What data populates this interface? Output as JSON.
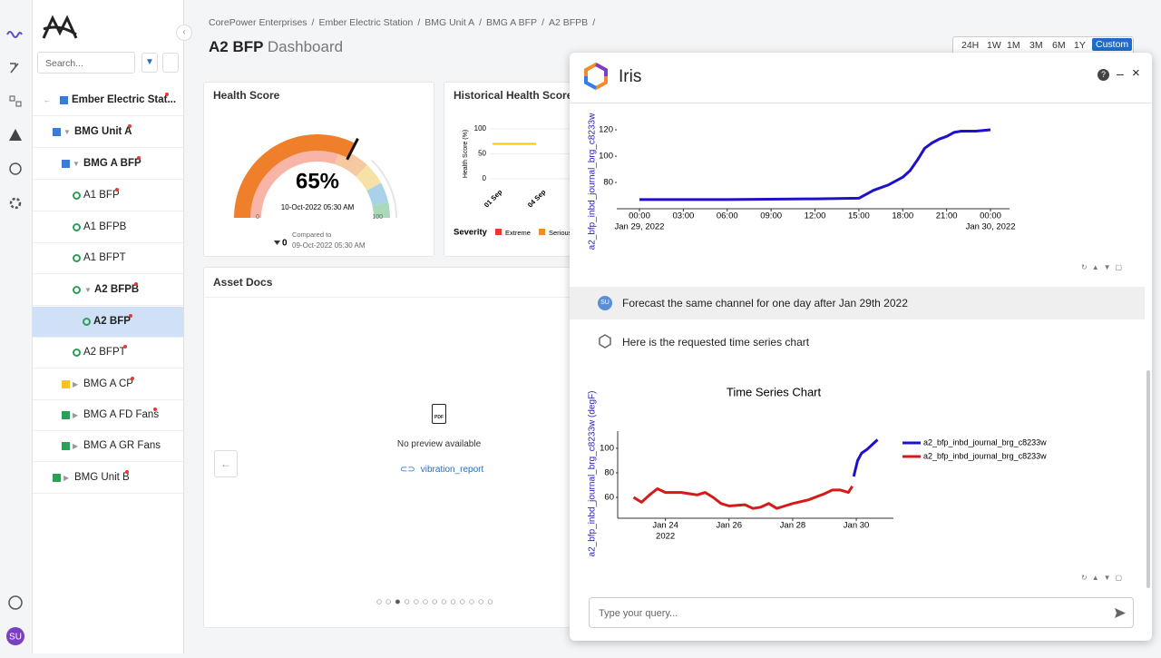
{
  "sidebar": {
    "search_placeholder": "Search...",
    "tree": [
      "Ember Electric Stat...",
      "BMG Unit A",
      "BMG A BFP",
      "A1 BFP",
      "A1 BFPB",
      "A1 BFPT",
      "A2 BFPB",
      "A2 BFP",
      "A2 BFPT",
      "BMG A CP",
      "BMG A FD Fans",
      "BMG A GR Fans",
      "BMG Unit B"
    ],
    "avatar": "SU"
  },
  "breadcrumb": {
    "items": [
      "CorePower Enterprises",
      "Ember Electric Station",
      "BMG Unit A",
      "BMG A BFP",
      "A2 BFPB"
    ],
    "separator": "/"
  },
  "header": {
    "title": "A2 BFP",
    "title_suffix": "Dashboard",
    "time_ranges": [
      "24H",
      "1W",
      "1M",
      "3M",
      "6M",
      "1Y",
      "Custom"
    ]
  },
  "health_score": {
    "title": "Health Score",
    "value": 65,
    "value_label": "65%",
    "min": 0,
    "max": 100,
    "timestamp": "10-Oct-2022 05:30 AM",
    "change": 0,
    "compared_to": "Compared to",
    "compared_timestamp": "09-Oct-2022 05:30 AM"
  },
  "historical": {
    "title": "Historical Health Score Trend",
    "chart_data": {
      "type": "line",
      "y_label": "Health Score (%)",
      "categories": [
        "01 Sep",
        "04 Sep"
      ],
      "values": [
        70,
        70
      ],
      "color": "#f5c518",
      "ylim": [
        0,
        100
      ],
      "yticks": [
        0,
        50,
        100
      ]
    },
    "severity_label": "Severity",
    "severity": [
      {
        "name": "Extreme",
        "color": "#e53935"
      },
      {
        "name": "Serious",
        "color": "#f08c2b"
      }
    ]
  },
  "asset_docs": {
    "title": "Asset Docs",
    "pdf_icon": "PDF",
    "empty": "No preview available",
    "file": "vibration_report"
  },
  "iris": {
    "title": "Iris",
    "chart1": {
      "type": "line",
      "y_label": "a2_bfp_inbd_journal_brg_c8233w",
      "series": [
        {
          "color": "#1f10cc",
          "x": [
            "2022-01-29T00:00",
            "2022-01-29T06:00",
            "2022-01-29T12:00",
            "2022-01-29T15:00",
            "2022-01-29T15:30",
            "2022-01-29T16:00",
            "2022-01-29T17:00",
            "2022-01-29T18:00",
            "2022-01-29T18:30",
            "2022-01-29T19:00",
            "2022-01-29T19:30",
            "2022-01-29T20:00",
            "2022-01-29T20:30",
            "2022-01-29T21:00",
            "2022-01-29T21:30",
            "2022-01-29T22:00",
            "2022-01-29T23:00",
            "2022-01-30T00:00"
          ],
          "values": [
            67,
            67,
            67.5,
            68,
            71,
            74,
            78,
            84,
            89,
            97,
            106,
            110,
            113,
            115,
            118,
            119,
            119,
            120
          ]
        }
      ],
      "xlim": [
        "2022-01-28T22:27",
        "2022-01-30T01:18"
      ],
      "ylim": [
        60,
        129
      ],
      "xticks": [
        {
          "value": "2022-01-29T00:00",
          "label": "00:00"
        },
        {
          "value": "2022-01-29T03:00",
          "label": "03:00"
        },
        {
          "value": "2022-01-29T06:00",
          "label": "06:00"
        },
        {
          "value": "2022-01-29T09:00",
          "label": "09:00"
        },
        {
          "value": "2022-01-29T12:00",
          "label": "12:00"
        },
        {
          "value": "2022-01-29T15:00",
          "label": "15:00"
        },
        {
          "value": "2022-01-29T18:00",
          "label": "18:00"
        },
        {
          "value": "2022-01-29T21:00",
          "label": "21:00"
        },
        {
          "value": "2022-01-30T00:00",
          "label": "00:00"
        }
      ],
      "xsublabels": [
        {
          "value": "2022-01-29T00:00",
          "label": "Jan 29, 2022"
        },
        {
          "value": "2022-01-30T00:00",
          "label": "Jan 30, 2022"
        }
      ],
      "yticks": [
        80,
        100,
        120
      ]
    },
    "user_avatar": "SU",
    "user_message": "Forecast the same channel for one day after Jan 29th 2022",
    "reply": "Here is the requested time series chart",
    "chart2": {
      "type": "line",
      "title": "Time Series Chart",
      "y_label": "a2_bfp_inbd_journal_brg_c8233w (degF)",
      "series": [
        {
          "name": "a2_bfp_inbd_journal_brg_c8233w",
          "color": "#1f10cc",
          "x": [
            "2022-01-29T22:00",
            "2022-01-30T01:00",
            "2022-01-30T04:00",
            "2022-01-30T08:00",
            "2022-01-30T12:00",
            "2022-01-30T16:00"
          ],
          "values": [
            77,
            90,
            96,
            99,
            103,
            107
          ]
        },
        {
          "name": "a2_bfp_inbd_journal_brg_c8233w",
          "color": "#d61a1a",
          "x": [
            "2022-01-23T00:00",
            "2022-01-23T06:00",
            "2022-01-23T12:00",
            "2022-01-23T18:00",
            "2022-01-24T00:00",
            "2022-01-24T12:00",
            "2022-01-25T00:00",
            "2022-01-25T06:00",
            "2022-01-25T12:00",
            "2022-01-25T18:00",
            "2022-01-26T00:00",
            "2022-01-26T12:00",
            "2022-01-26T18:00",
            "2022-01-27T00:00",
            "2022-01-27T06:00",
            "2022-01-27T12:00",
            "2022-01-27T18:00",
            "2022-01-28T00:00",
            "2022-01-28T12:00",
            "2022-01-29T00:00",
            "2022-01-29T06:00",
            "2022-01-29T12:00",
            "2022-01-29T18:00",
            "2022-01-29T21:00"
          ],
          "values": [
            60,
            56,
            62,
            67,
            64,
            64,
            62,
            64,
            60,
            55,
            53,
            54,
            51,
            52,
            55,
            51,
            53,
            55,
            58,
            63,
            66,
            66,
            64,
            69
          ]
        }
      ],
      "xlim": [
        "2022-01-22T12:00",
        "2022-01-31T04:00"
      ],
      "ylim": [
        43,
        114
      ],
      "xticks": [
        {
          "value": "2022-01-24T00:00",
          "label": "Jan 24"
        },
        {
          "value": "2022-01-26T00:00",
          "label": "Jan 26"
        },
        {
          "value": "2022-01-28T00:00",
          "label": "Jan 28"
        },
        {
          "value": "2022-01-30T00:00",
          "label": "Jan 30"
        }
      ],
      "xsublabels": [
        {
          "value": "2022-01-24T00:00",
          "label": "2022"
        }
      ],
      "yticks": [
        60,
        80,
        100
      ]
    },
    "input_placeholder": "Type your query..."
  }
}
